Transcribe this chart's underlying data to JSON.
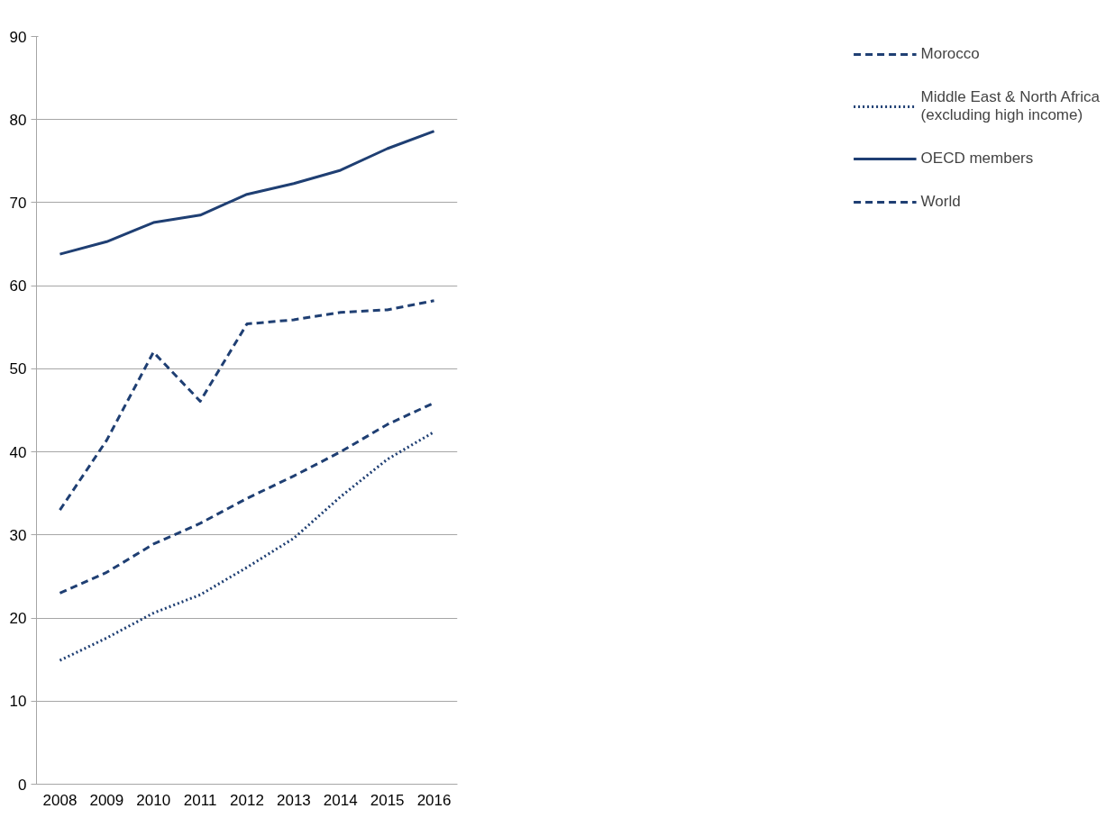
{
  "chart_data": {
    "type": "line",
    "categories": [
      "2008",
      "2009",
      "2010",
      "2011",
      "2012",
      "2013",
      "2014",
      "2015",
      "2016"
    ],
    "series": [
      {
        "name": "Morocco",
        "color": "#1f3f73",
        "line_style": "dashed",
        "values": [
          33.0,
          41.4,
          52.0,
          46.1,
          55.4,
          55.9,
          56.8,
          57.1,
          58.2
        ]
      },
      {
        "name": "Middle East & North Africa (excluding high income)",
        "color": "#1f3f73",
        "line_style": "dotted",
        "values": [
          14.9,
          17.6,
          20.6,
          22.8,
          26.1,
          29.6,
          34.6,
          39.1,
          42.4
        ]
      },
      {
        "name": "OECD members",
        "color": "#1f3f73",
        "line_style": "solid",
        "values": [
          63.8,
          65.3,
          67.6,
          68.5,
          71.0,
          72.3,
          73.9,
          76.5,
          78.6
        ]
      },
      {
        "name": "World",
        "color": "#1f3f73",
        "line_style": "dashed",
        "values": [
          23.0,
          25.5,
          28.9,
          31.4,
          34.4,
          37.1,
          40.0,
          43.3,
          45.9
        ]
      }
    ],
    "ylim": [
      0,
      90
    ],
    "yticks": [
      0,
      10,
      20,
      30,
      40,
      50,
      60,
      70,
      80,
      90
    ],
    "grid": "y",
    "legend": "right"
  }
}
